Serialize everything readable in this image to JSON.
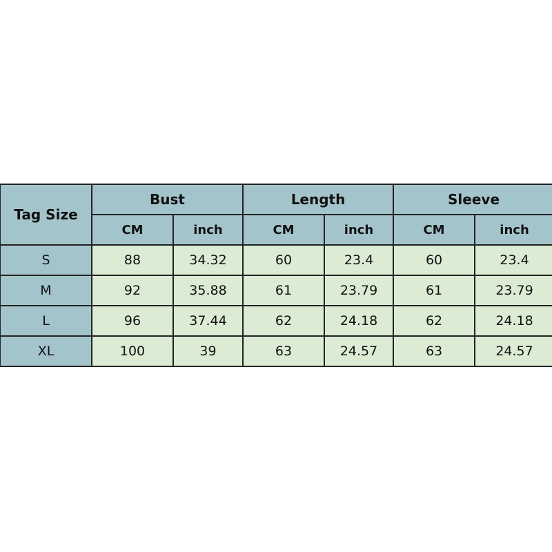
{
  "table": {
    "tag_header": "Tag Size",
    "groups": [
      "Bust",
      "Length",
      "Sleeve"
    ],
    "units": [
      "CM",
      "inch",
      "CM",
      "inch",
      "CM",
      "inch"
    ],
    "rows": [
      {
        "size": "S",
        "values": [
          "88",
          "34.32",
          "60",
          "23.4",
          "60",
          "23.4"
        ]
      },
      {
        "size": "M",
        "values": [
          "92",
          "35.88",
          "61",
          "23.79",
          "61",
          "23.79"
        ]
      },
      {
        "size": "L",
        "values": [
          "96",
          "37.44",
          "62",
          "24.18",
          "62",
          "24.18"
        ]
      },
      {
        "size": "XL",
        "values": [
          "100",
          "39",
          "63",
          "24.57",
          "63",
          "24.57"
        ]
      }
    ]
  },
  "colors": {
    "header": "#a4c4cb",
    "cell": "#dcebd4",
    "border": "#222222"
  }
}
